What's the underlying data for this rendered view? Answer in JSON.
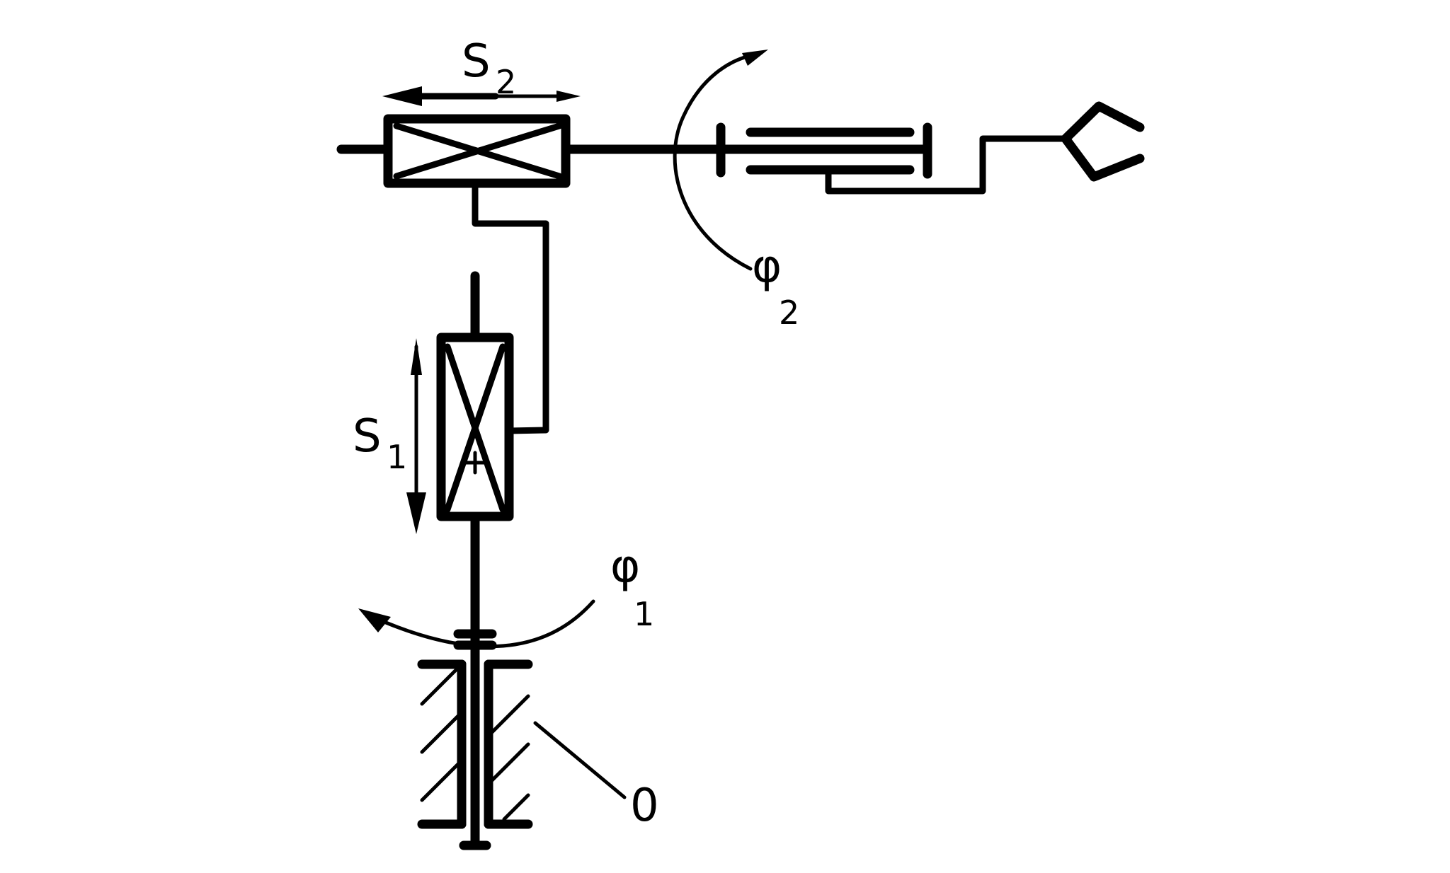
{
  "labels": {
    "s1": "S",
    "s1_sub": "1",
    "s2": "S",
    "s2_sub": "2",
    "phi1": "φ",
    "phi1_sub": "1",
    "phi2": "φ",
    "phi2_sub": "2",
    "zero": "0"
  }
}
